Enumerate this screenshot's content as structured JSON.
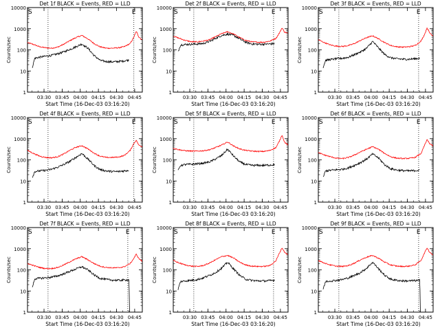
{
  "figure": {
    "x_ticks": [
      "03:30",
      "03:45",
      "04:00",
      "04:15",
      "04:30",
      "04:45"
    ],
    "y_ticks": [
      "1",
      "10",
      "100",
      "1000",
      "10000"
    ],
    "ylabel": "Counts/sec",
    "xlabel": "Start Time (16-Dec-03 03:16:20)",
    "marker_start": "S",
    "marker_end": "E",
    "series_colors": {
      "events": "#000000",
      "lld": "#ff0000"
    }
  },
  "chart_data": [
    {
      "type": "line",
      "title": "Det 1f BLACK = Events, RED = LLD",
      "xlabel": "Start Time (16-Dec-03 03:16:20)",
      "ylabel": "Counts/sec",
      "x_unit": "minutes after 03:16:20",
      "xlim": [
        0,
        95
      ],
      "ylim": [
        1,
        13000
      ],
      "yscale": "log",
      "vlines": [
        17,
        88
      ],
      "series": [
        {
          "name": "LLD",
          "color": "#ff0000",
          "x": [
            0,
            5,
            10,
            15,
            20,
            25,
            30,
            35,
            40,
            45,
            50,
            55,
            60,
            65,
            70,
            75,
            80,
            85,
            88,
            90,
            92,
            95
          ],
          "values": [
            220,
            180,
            140,
            125,
            120,
            135,
            185,
            270,
            380,
            480,
            330,
            200,
            140,
            120,
            120,
            125,
            140,
            200,
            400,
            750,
            420,
            290
          ]
        },
        {
          "name": "Events",
          "color": "#000000",
          "x": [
            4,
            6,
            10,
            15,
            20,
            25,
            30,
            35,
            40,
            45,
            50,
            55,
            60,
            65,
            70,
            75,
            80,
            84
          ],
          "values": [
            15,
            40,
            45,
            50,
            55,
            65,
            80,
            105,
            140,
            190,
            120,
            55,
            32,
            28,
            27,
            28,
            30,
            34
          ]
        }
      ]
    },
    {
      "type": "line",
      "title": "Det 2f BLACK = Events, RED = LLD",
      "xlabel": "Start Time (16-Dec-03 03:16:20)",
      "ylabel": "Counts/sec",
      "x_unit": "minutes after 03:16:20",
      "xlim": [
        0,
        95
      ],
      "ylim": [
        1,
        13000
      ],
      "yscale": "log",
      "vlines": [
        17,
        83
      ],
      "series": [
        {
          "name": "LLD",
          "color": "#ff0000",
          "x": [
            0,
            5,
            10,
            15,
            20,
            25,
            30,
            35,
            40,
            45,
            50,
            55,
            60,
            65,
            70,
            75,
            80,
            85,
            88,
            90,
            92,
            95
          ],
          "values": [
            450,
            350,
            280,
            240,
            240,
            260,
            300,
            420,
            580,
            720,
            560,
            380,
            280,
            240,
            230,
            230,
            260,
            350,
            650,
            1100,
            700,
            600
          ]
        },
        {
          "name": "Events",
          "color": "#000000",
          "x": [
            4,
            6,
            10,
            15,
            20,
            25,
            30,
            35,
            40,
            45,
            50,
            55,
            60,
            65,
            70,
            75,
            80,
            84
          ],
          "values": [
            80,
            170,
            180,
            185,
            190,
            200,
            250,
            350,
            480,
            560,
            480,
            330,
            230,
            190,
            185,
            185,
            190,
            200
          ]
        }
      ]
    },
    {
      "type": "line",
      "title": "Det 3f BLACK = Events, RED = LLD",
      "xlabel": "Start Time (16-Dec-03 03:16:20)",
      "ylabel": "Counts/sec",
      "x_unit": "minutes after 03:16:20",
      "xlim": [
        0,
        95
      ],
      "ylim": [
        1,
        13000
      ],
      "yscale": "log",
      "vlines": [
        17,
        83
      ],
      "series": [
        {
          "name": "LLD",
          "color": "#ff0000",
          "x": [
            0,
            5,
            10,
            15,
            20,
            25,
            30,
            35,
            40,
            45,
            50,
            55,
            60,
            65,
            70,
            75,
            80,
            85,
            88,
            90,
            92,
            95
          ],
          "values": [
            300,
            220,
            170,
            150,
            145,
            160,
            200,
            280,
            380,
            460,
            330,
            220,
            160,
            140,
            135,
            140,
            160,
            260,
            550,
            1100,
            650,
            450
          ]
        },
        {
          "name": "Events",
          "color": "#000000",
          "x": [
            4,
            6,
            10,
            15,
            20,
            25,
            30,
            35,
            40,
            45,
            50,
            55,
            60,
            65,
            70,
            75,
            80,
            84
          ],
          "values": [
            15,
            32,
            35,
            38,
            40,
            45,
            60,
            80,
            120,
            250,
            120,
            60,
            42,
            38,
            36,
            36,
            38,
            40
          ]
        }
      ]
    },
    {
      "type": "line",
      "title": "Det 4f BLACK = Events, RED = LLD",
      "xlabel": "Start Time (16-Dec-03 03:16:20)",
      "ylabel": "Counts/sec",
      "x_unit": "minutes after 03:16:20",
      "xlim": [
        0,
        95
      ],
      "ylim": [
        1,
        13000
      ],
      "yscale": "log",
      "vlines": [
        17,
        88
      ],
      "series": [
        {
          "name": "LLD",
          "color": "#ff0000",
          "x": [
            0,
            5,
            10,
            15,
            20,
            25,
            30,
            35,
            40,
            45,
            50,
            55,
            60,
            65,
            70,
            75,
            80,
            85,
            88,
            90,
            92,
            95
          ],
          "values": [
            280,
            200,
            150,
            130,
            125,
            140,
            190,
            280,
            390,
            470,
            330,
            210,
            150,
            130,
            130,
            135,
            160,
            280,
            600,
            850,
            500,
            420
          ]
        },
        {
          "name": "Events",
          "color": "#000000",
          "x": [
            4,
            6,
            10,
            15,
            20,
            25,
            30,
            35,
            40,
            45,
            50,
            55,
            60,
            65,
            70,
            75,
            80,
            84
          ],
          "values": [
            15,
            28,
            30,
            32,
            36,
            45,
            60,
            85,
            130,
            200,
            110,
            55,
            35,
            30,
            28,
            28,
            30,
            32
          ]
        }
      ]
    },
    {
      "type": "line",
      "title": "Det 5f BLACK = Events, RED = LLD",
      "xlabel": "Start Time (16-Dec-03 03:16:20)",
      "ylabel": "Counts/sec",
      "x_unit": "minutes after 03:16:20",
      "xlim": [
        0,
        95
      ],
      "ylim": [
        1,
        13000
      ],
      "yscale": "log",
      "vlines": [
        17,
        83
      ],
      "series": [
        {
          "name": "LLD",
          "color": "#ff0000",
          "x": [
            0,
            5,
            10,
            15,
            20,
            25,
            30,
            35,
            40,
            45,
            50,
            55,
            60,
            65,
            70,
            75,
            80,
            85,
            88,
            90,
            92,
            95
          ],
          "values": [
            350,
            300,
            270,
            260,
            260,
            270,
            300,
            380,
            500,
            700,
            450,
            330,
            280,
            260,
            250,
            250,
            280,
            380,
            800,
            1500,
            700,
            500
          ]
        },
        {
          "name": "Events",
          "color": "#000000",
          "x": [
            4,
            6,
            10,
            15,
            20,
            25,
            30,
            35,
            40,
            45,
            50,
            55,
            60,
            65,
            70,
            75,
            80,
            84
          ],
          "values": [
            30,
            55,
            60,
            62,
            65,
            70,
            80,
            110,
            160,
            320,
            150,
            80,
            60,
            55,
            55,
            55,
            57,
            60
          ]
        }
      ]
    },
    {
      "type": "line",
      "title": "Det 6f BLACK = Events, RED = LLD",
      "xlabel": "Start Time (16-Dec-03 03:16:20)",
      "ylabel": "Counts/sec",
      "x_unit": "minutes after 03:16:20",
      "xlim": [
        0,
        95
      ],
      "ylim": [
        1,
        13000
      ],
      "yscale": "log",
      "vlines": [
        17,
        83
      ],
      "series": [
        {
          "name": "LLD",
          "color": "#ff0000",
          "x": [
            0,
            5,
            10,
            15,
            20,
            25,
            30,
            35,
            40,
            45,
            50,
            55,
            60,
            65,
            70,
            75,
            80,
            85,
            88,
            90,
            92,
            95
          ],
          "values": [
            220,
            170,
            140,
            120,
            115,
            130,
            170,
            240,
            320,
            420,
            310,
            200,
            140,
            120,
            115,
            118,
            130,
            200,
            500,
            900,
            600,
            450
          ]
        },
        {
          "name": "Events",
          "color": "#000000",
          "x": [
            4,
            6,
            10,
            15,
            20,
            25,
            30,
            35,
            40,
            45,
            50,
            55,
            60,
            65,
            70,
            75,
            80,
            84
          ],
          "values": [
            15,
            30,
            32,
            34,
            36,
            42,
            55,
            75,
            110,
            190,
            120,
            58,
            38,
            33,
            31,
            30,
            31,
            32
          ]
        }
      ]
    },
    {
      "type": "line",
      "title": "Det 7f BLACK = Events, RED = LLD",
      "xlabel": "Start Time (16-Dec-03 03:16:20)",
      "ylabel": "Counts/sec",
      "x_unit": "minutes after 03:16:20",
      "xlim": [
        0,
        95
      ],
      "ylim": [
        1,
        13000
      ],
      "yscale": "log",
      "vlines": [
        17,
        83
      ],
      "series": [
        {
          "name": "LLD",
          "color": "#ff0000",
          "x": [
            0,
            5,
            10,
            15,
            20,
            25,
            30,
            35,
            40,
            45,
            50,
            55,
            60,
            65,
            70,
            75,
            80,
            85,
            88,
            90,
            92,
            95
          ],
          "values": [
            200,
            160,
            130,
            115,
            115,
            130,
            170,
            240,
            330,
            420,
            300,
            200,
            150,
            130,
            125,
            125,
            140,
            200,
            350,
            550,
            350,
            250
          ]
        },
        {
          "name": "Events",
          "color": "#000000",
          "x": [
            4,
            6,
            10,
            15,
            20,
            25,
            30,
            35,
            40,
            45,
            50,
            55,
            60,
            65,
            70,
            75,
            80,
            84,
            84.5,
            86
          ],
          "values": [
            15,
            38,
            40,
            42,
            45,
            52,
            65,
            85,
            110,
            140,
            100,
            58,
            40,
            35,
            33,
            32,
            33,
            34,
            1,
            1
          ]
        }
      ]
    },
    {
      "type": "line",
      "title": "Det 8f BLACK = Events, RED = LLD",
      "xlabel": "Start Time (16-Dec-03 03:16:20)",
      "ylabel": "Counts/sec",
      "x_unit": "minutes after 03:16:20",
      "xlim": [
        0,
        95
      ],
      "ylim": [
        1,
        13000
      ],
      "yscale": "log",
      "vlines": [
        17,
        83
      ],
      "series": [
        {
          "name": "LLD",
          "color": "#ff0000",
          "x": [
            0,
            5,
            10,
            15,
            20,
            25,
            30,
            35,
            40,
            45,
            50,
            55,
            60,
            65,
            70,
            75,
            80,
            85,
            88,
            90,
            92,
            95
          ],
          "values": [
            280,
            210,
            170,
            150,
            145,
            160,
            210,
            300,
            420,
            480,
            360,
            230,
            170,
            150,
            145,
            145,
            160,
            270,
            650,
            1100,
            700,
            500
          ]
        },
        {
          "name": "Events",
          "color": "#000000",
          "x": [
            4,
            6,
            10,
            15,
            20,
            25,
            30,
            35,
            40,
            45,
            50,
            55,
            60,
            65,
            70,
            75,
            80,
            84
          ],
          "values": [
            12,
            28,
            30,
            32,
            35,
            42,
            55,
            75,
            120,
            230,
            110,
            55,
            36,
            32,
            30,
            30,
            31,
            33
          ]
        }
      ]
    },
    {
      "type": "line",
      "title": "Det 9f BLACK = Events, RED = LLD",
      "xlabel": "Start Time (16-Dec-03 03:16:20)",
      "ylabel": "Counts/sec",
      "x_unit": "minutes after 03:16:20",
      "xlim": [
        0,
        95
      ],
      "ylim": [
        1,
        13000
      ],
      "yscale": "log",
      "vlines": [
        17,
        83
      ],
      "series": [
        {
          "name": "LLD",
          "color": "#ff0000",
          "x": [
            0,
            5,
            10,
            15,
            20,
            25,
            30,
            35,
            40,
            45,
            50,
            55,
            60,
            65,
            70,
            75,
            80,
            85,
            88,
            90,
            92,
            95
          ],
          "values": [
            280,
            210,
            170,
            150,
            145,
            160,
            210,
            300,
            400,
            480,
            350,
            230,
            170,
            150,
            145,
            150,
            170,
            280,
            650,
            1100,
            700,
            500
          ]
        },
        {
          "name": "Events",
          "color": "#000000",
          "x": [
            4,
            6,
            10,
            15,
            20,
            25,
            30,
            35,
            40,
            45,
            50,
            55,
            60,
            65,
            70,
            75,
            80,
            84,
            84.5,
            86
          ],
          "values": [
            12,
            28,
            30,
            32,
            35,
            42,
            55,
            75,
            120,
            230,
            110,
            55,
            36,
            32,
            30,
            30,
            31,
            32,
            1,
            1
          ]
        }
      ]
    }
  ]
}
